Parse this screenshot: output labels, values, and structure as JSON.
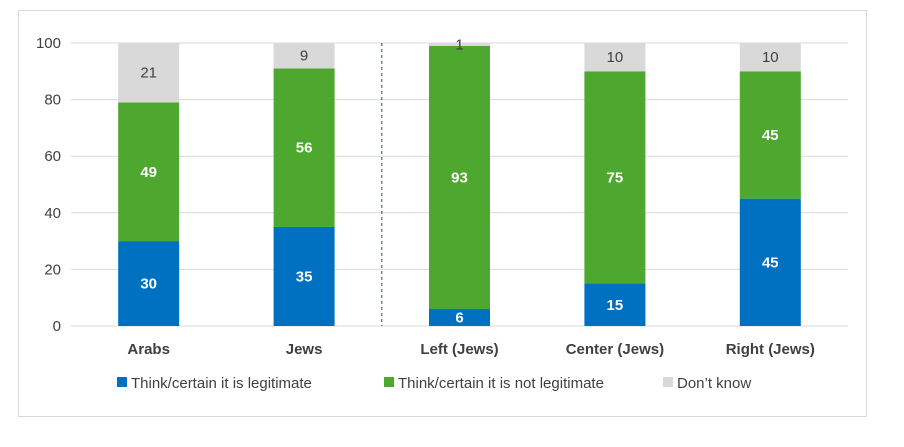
{
  "chart_data": {
    "type": "bar",
    "stacked": true,
    "title": "",
    "xlabel": "",
    "ylabel": "",
    "ylim": [
      0,
      100
    ],
    "yticks": [
      0,
      20,
      40,
      60,
      80,
      100
    ],
    "grid": true,
    "categories": [
      "Arabs",
      "Jews",
      "Left (Jews)",
      "Center (Jews)",
      "Right (Jews)"
    ],
    "divider_after_category": "Jews",
    "series": [
      {
        "name": "Think/certain it is legitimate",
        "color": "#0070c0",
        "values": [
          30,
          35,
          6,
          15,
          45
        ]
      },
      {
        "name": "Think/certain it is not legitimate",
        "color": "#4ea72e",
        "values": [
          49,
          56,
          93,
          75,
          45
        ]
      },
      {
        "name": "Don’t know",
        "color": "#d9d9d9",
        "values": [
          21,
          9,
          1,
          10,
          10
        ]
      }
    ],
    "legend_position": "bottom"
  }
}
